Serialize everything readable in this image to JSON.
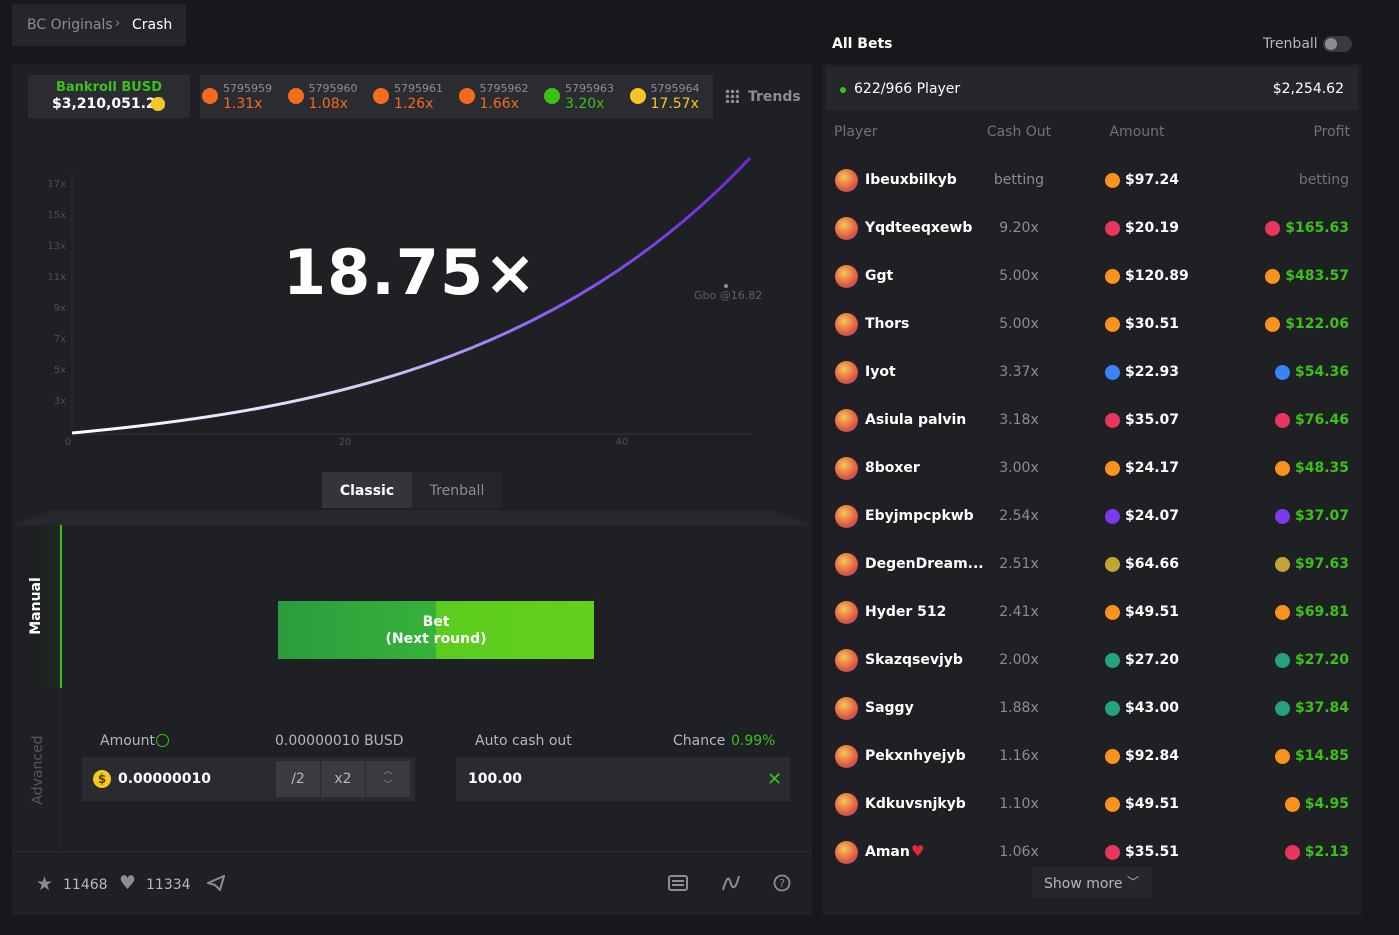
{
  "breadcrumb": [
    "BC Originals",
    "Crash"
  ],
  "bankroll": {
    "label": "Bankroll BUSD",
    "value": "$3,210,051.21"
  },
  "history": [
    {
      "id": "5795959",
      "multiplier": "1.31x",
      "color": "#f46b1c"
    },
    {
      "id": "5795960",
      "multiplier": "1.08x",
      "color": "#f46b1c"
    },
    {
      "id": "5795961",
      "multiplier": "1.26x",
      "color": "#f46b1c"
    },
    {
      "id": "5795962",
      "multiplier": "1.66x",
      "color": "#f46b1c"
    },
    {
      "id": "5795963",
      "multiplier": "3.20x",
      "color": "#3bc117"
    },
    {
      "id": "5795964",
      "multiplier": "17.57x",
      "color": "#f6c722"
    }
  ],
  "trends": "Trends",
  "multiplier": "18.75×",
  "graph": {
    "y_labels": [
      "17x",
      "15x",
      "13x",
      "11x",
      "9x",
      "7x",
      "5x",
      "3x"
    ],
    "x_labels": [
      "0",
      "20",
      "40"
    ],
    "player_marker": "Gbo @16.82"
  },
  "mode_tabs": [
    "Classic",
    "Trenball"
  ],
  "side_tabs": [
    "Manual",
    "Advanced"
  ],
  "bet_button": {
    "label": "Bet",
    "sublabel": "(Next round)"
  },
  "amount": {
    "label": "Amount",
    "hint": "0.00000010 BUSD",
    "input": "0.00000010",
    "half": "/2",
    "double": "x2"
  },
  "auto_cash_out": {
    "label": "Auto cash out",
    "chance_label": "Chance",
    "chance": "0.99%",
    "input": "100.00"
  },
  "footer": {
    "stars": "11468",
    "likes": "11334"
  },
  "all_bets": {
    "title": "All Bets",
    "toggle": "Trenball",
    "players": "622/966 Player",
    "total": "$2,254.62",
    "headers": [
      "Player",
      "Cash Out",
      "Amount",
      "Profit"
    ],
    "rows": [
      {
        "player": "Ibeuxbilkyb",
        "cash_out": "betting",
        "amount": "$97.24",
        "profit": "betting",
        "coin_color": "#f7931a"
      },
      {
        "player": "Yqdteeqxewb",
        "cash_out": "9.20x",
        "amount": "$20.19",
        "profit": "$165.63",
        "coin_color": "#e8365d"
      },
      {
        "player": "Ggt",
        "cash_out": "5.00x",
        "amount": "$120.89",
        "profit": "$483.57",
        "coin_color": "#f7931a"
      },
      {
        "player": "Thors",
        "cash_out": "5.00x",
        "amount": "$30.51",
        "profit": "$122.06",
        "coin_color": "#f7931a"
      },
      {
        "player": "Iyot",
        "cash_out": "3.37x",
        "amount": "$22.93",
        "profit": "$54.36",
        "coin_color": "#3b82f6"
      },
      {
        "player": "Asiula palvin",
        "cash_out": "3.18x",
        "amount": "$35.07",
        "profit": "$76.46",
        "coin_color": "#e8365d"
      },
      {
        "player": "8boxer",
        "cash_out": "3.00x",
        "amount": "$24.17",
        "profit": "$48.35",
        "coin_color": "#f7931a"
      },
      {
        "player": "Ebyjmpcpkwb",
        "cash_out": "2.54x",
        "amount": "$24.07",
        "profit": "$37.07",
        "coin_color": "#7c3aed"
      },
      {
        "player": "DegenDream...",
        "cash_out": "2.51x",
        "amount": "$64.66",
        "profit": "$97.63",
        "coin_color": "#c2a633"
      },
      {
        "player": "Hyder 512",
        "cash_out": "2.41x",
        "amount": "$49.51",
        "profit": "$69.81",
        "coin_color": "#f7931a"
      },
      {
        "player": "Skazqsevjyb",
        "cash_out": "2.00x",
        "amount": "$27.20",
        "profit": "$27.20",
        "coin_color": "#26a17b"
      },
      {
        "player": "Saggy",
        "cash_out": "1.88x",
        "amount": "$43.00",
        "profit": "$37.84",
        "coin_color": "#26a17b"
      },
      {
        "player": "Pekxnhyejyb",
        "cash_out": "1.16x",
        "amount": "$92.84",
        "profit": "$14.85",
        "coin_color": "#f7931a"
      },
      {
        "player": "Kdkuvsnjkyb",
        "cash_out": "1.10x",
        "amount": "$49.51",
        "profit": "$4.95",
        "coin_color": "#f7931a"
      },
      {
        "player": "Aman",
        "cash_out": "1.06x",
        "amount": "$35.51",
        "profit": "$2.13",
        "coin_color": "#e8365d"
      }
    ],
    "show_more": "Show more"
  }
}
